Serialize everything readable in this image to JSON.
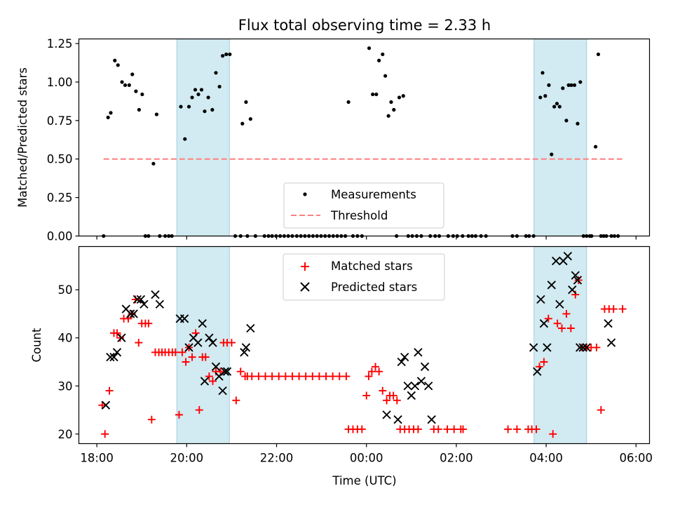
{
  "title": "Flux total observing time = 2.33 h",
  "colors": {
    "shade": "#add8e6",
    "matched": "#ff0000",
    "predicted": "#000000",
    "threshold": "#ff7f7f",
    "measure": "#000000"
  },
  "chart_data": [
    {
      "type": "scatter",
      "panel": "top",
      "ylabel": "Matched/Predicted stars",
      "xlabel": "",
      "xlim_hours": [
        17.6,
        30.3
      ],
      "ylim": [
        0,
        1.28
      ],
      "yticks": [
        0,
        0.25,
        0.5,
        0.75,
        1.0,
        1.25
      ],
      "ytick_labels": [
        "0.00",
        "0.25",
        "0.50",
        "0.75",
        "1.00",
        "1.25"
      ],
      "shaded_intervals_hours": [
        [
          19.78,
          20.95
        ],
        [
          27.73,
          28.9
        ]
      ],
      "legend": {
        "placement": "lower-center",
        "measurements": "Measurements",
        "threshold": "Threshold"
      },
      "threshold": {
        "value": 0.5,
        "x_range_hours": [
          18.15,
          29.75
        ]
      },
      "series": [
        {
          "name": "Measurements",
          "x_hours": [
            18.15,
            18.25,
            18.31,
            18.4,
            18.47,
            18.56,
            18.63,
            18.72,
            18.79,
            18.87,
            18.94,
            19.01,
            19.08,
            19.15,
            19.26,
            19.33,
            19.4,
            19.52,
            19.6,
            19.67,
            19.87,
            19.96,
            20.05,
            20.12,
            20.19,
            20.26,
            20.33,
            20.4,
            20.48,
            20.57,
            20.65,
            20.73,
            20.8,
            20.88,
            20.96,
            21.08,
            21.2,
            21.24,
            21.32,
            21.35,
            21.42,
            21.53,
            21.73,
            21.82,
            21.9,
            21.99,
            22.08,
            22.17,
            22.26,
            22.35,
            22.45,
            22.54,
            22.63,
            22.72,
            22.81,
            22.9,
            22.99,
            23.08,
            23.17,
            23.26,
            23.35,
            23.44,
            23.53,
            23.6,
            23.7,
            23.8,
            23.9,
            24.06,
            24.14,
            24.22,
            24.28,
            24.36,
            24.42,
            24.49,
            24.55,
            24.61,
            24.67,
            24.73,
            24.82,
            24.93,
            25.02,
            25.12,
            25.22,
            25.42,
            25.53,
            25.62,
            25.82,
            25.93,
            26.02,
            26.14,
            26.27,
            26.35,
            26.43,
            26.55,
            26.66,
            27.25,
            27.35,
            27.55,
            27.62,
            27.72,
            27.87,
            27.92,
            27.98,
            28.06,
            28.12,
            28.18,
            28.24,
            28.3,
            28.37,
            28.45,
            28.5,
            28.56,
            28.63,
            28.7,
            28.76,
            28.83,
            28.9,
            28.97,
            29.01,
            29.1,
            29.16,
            29.22,
            29.28,
            29.34,
            29.45,
            29.52,
            29.6
          ],
          "values": [
            0.0,
            0.77,
            0.8,
            1.14,
            1.11,
            1.0,
            0.98,
            0.98,
            1.05,
            0.94,
            0.82,
            0.92,
            0.0,
            0.0,
            0.47,
            0.79,
            0.0,
            0.0,
            0.0,
            0.0,
            0.84,
            0.63,
            0.84,
            0.9,
            0.95,
            0.92,
            0.95,
            0.81,
            0.9,
            0.82,
            1.06,
            0.97,
            1.17,
            1.18,
            1.18,
            0.0,
            0.0,
            0.73,
            0.87,
            0.0,
            0.76,
            0.0,
            0.0,
            0.0,
            0.0,
            0.0,
            0.0,
            0.0,
            0.0,
            0.0,
            0.0,
            0.0,
            0.0,
            0.0,
            0.0,
            0.0,
            0.0,
            0.0,
            0.0,
            0.0,
            0.0,
            0.0,
            0.0,
            0.87,
            0.0,
            0.0,
            0.0,
            1.22,
            0.92,
            0.92,
            1.14,
            1.18,
            1.04,
            0.78,
            0.87,
            0.82,
            0.0,
            0.9,
            0.91,
            0.0,
            0.0,
            0.0,
            0.0,
            0.0,
            0.0,
            0.0,
            0.0,
            0.0,
            0.0,
            0.0,
            0.0,
            0.0,
            0.0,
            0.0,
            0.0,
            0.0,
            0.0,
            0.0,
            0.0,
            0.0,
            0.9,
            1.06,
            0.91,
            0.98,
            0.53,
            0.84,
            0.86,
            0.84,
            0.96,
            0.75,
            0.98,
            0.98,
            0.98,
            0.73,
            1.0,
            0.0,
            0.0,
            0.0,
            0.0,
            0.58,
            1.18,
            0.0,
            0.0,
            0.0,
            0.0,
            0.0,
            0.0
          ]
        }
      ]
    },
    {
      "type": "scatter",
      "panel": "bottom",
      "ylabel": "Count",
      "xlabel": "Time (UTC)",
      "xlim_hours": [
        17.6,
        30.3
      ],
      "ylim": [
        18,
        59
      ],
      "yticks": [
        20,
        30,
        40,
        50
      ],
      "ytick_labels": [
        "20",
        "30",
        "40",
        "50"
      ],
      "xticks_hours": [
        18,
        20,
        22,
        24,
        26,
        28,
        30
      ],
      "xtick_labels": [
        "18:00",
        "20:00",
        "22:00",
        "00:00",
        "02:00",
        "04:00",
        "06:00"
      ],
      "shaded_intervals_hours": [
        [
          19.78,
          20.95
        ],
        [
          27.73,
          28.9
        ]
      ],
      "legend": {
        "placement": "upper-center",
        "matched": "Matched stars",
        "predicted": "Predicted stars"
      },
      "series": [
        {
          "name": "Matched stars",
          "marker": "plus",
          "x_hours": [
            18.12,
            18.18,
            18.28,
            18.38,
            18.45,
            18.52,
            18.6,
            18.7,
            18.78,
            18.86,
            18.93,
            19.0,
            19.08,
            19.15,
            19.22,
            19.3,
            19.38,
            19.45,
            19.52,
            19.6,
            19.68,
            19.75,
            19.83,
            19.9,
            19.98,
            20.05,
            20.12,
            20.2,
            20.28,
            20.35,
            20.42,
            20.5,
            20.58,
            20.65,
            20.75,
            20.82,
            20.9,
            21.0,
            21.1,
            21.2,
            21.3,
            21.35,
            21.45,
            21.6,
            21.75,
            21.9,
            22.05,
            22.2,
            22.35,
            22.5,
            22.65,
            22.8,
            22.95,
            23.1,
            23.25,
            23.4,
            23.55,
            23.6,
            23.7,
            23.8,
            23.9,
            24.0,
            24.05,
            24.12,
            24.2,
            24.28,
            24.36,
            24.45,
            24.52,
            24.6,
            24.68,
            24.75,
            24.85,
            24.95,
            25.05,
            25.15,
            25.5,
            25.6,
            25.8,
            25.95,
            26.1,
            26.15,
            27.15,
            27.35,
            27.6,
            27.68,
            27.78,
            27.85,
            27.95,
            28.05,
            28.15,
            28.25,
            28.35,
            28.45,
            28.55,
            28.65,
            28.72,
            28.8,
            28.9,
            29.0,
            29.12,
            29.22,
            29.3,
            29.4,
            29.5,
            29.7
          ],
          "values": [
            26,
            20,
            29,
            41,
            41,
            40,
            44,
            44,
            45,
            48,
            39,
            43,
            43,
            43,
            23,
            37,
            37,
            37,
            37,
            37,
            37,
            37,
            24,
            37,
            35,
            38,
            36,
            41,
            25,
            36,
            36,
            32,
            31,
            33,
            33,
            39,
            39,
            39,
            27,
            33,
            32,
            32,
            32,
            32,
            32,
            32,
            32,
            32,
            32,
            32,
            32,
            32,
            32,
            32,
            32,
            32,
            32,
            21,
            21,
            21,
            21,
            28,
            32,
            33,
            34,
            33,
            29,
            27,
            28,
            28,
            27,
            21,
            21,
            21,
            21,
            21,
            21,
            21,
            21,
            21,
            21,
            21,
            21,
            21,
            21,
            21,
            21,
            34,
            35,
            44,
            20,
            43,
            42,
            45,
            42,
            49,
            52,
            38,
            38,
            38,
            38,
            25,
            46,
            46,
            46,
            46
          ]
        },
        {
          "name": "Predicted stars",
          "marker": "x",
          "x_hours": [
            18.2,
            18.3,
            18.38,
            18.45,
            18.55,
            18.65,
            18.75,
            18.82,
            18.9,
            18.98,
            19.05,
            19.3,
            19.4,
            19.85,
            19.95,
            20.05,
            20.15,
            20.25,
            20.35,
            20.4,
            20.5,
            20.58,
            20.65,
            20.72,
            20.8,
            20.85,
            20.9,
            21.28,
            21.32,
            21.42,
            24.45,
            24.7,
            24.78,
            24.85,
            24.92,
            25.0,
            25.08,
            25.15,
            25.22,
            25.3,
            25.38,
            25.45,
            27.72,
            27.8,
            27.88,
            27.95,
            28.02,
            28.12,
            28.22,
            28.3,
            28.38,
            28.48,
            28.58,
            28.65,
            28.7,
            28.75,
            28.82,
            28.9,
            29.38,
            29.45
          ],
          "values": [
            26,
            36,
            36,
            37,
            40,
            46,
            45,
            45,
            48,
            48,
            47,
            49,
            47,
            44,
            44,
            38,
            40,
            39,
            43,
            31,
            40,
            39,
            34,
            32,
            29,
            33,
            33,
            37,
            38,
            42,
            24,
            23,
            35,
            36,
            30,
            28,
            30,
            37,
            31,
            34,
            30,
            23,
            38,
            33,
            48,
            43,
            38,
            51,
            56,
            47,
            56,
            57,
            50,
            53,
            52,
            38,
            38,
            38,
            43,
            39
          ]
        }
      ]
    }
  ]
}
